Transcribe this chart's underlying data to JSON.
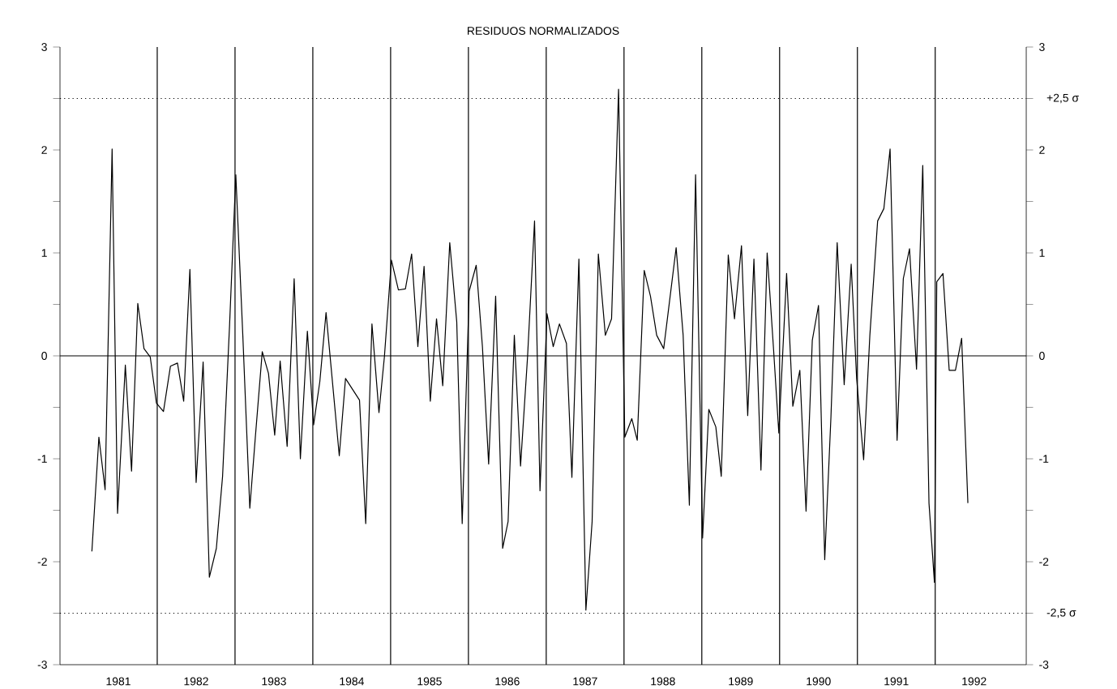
{
  "chart_data": {
    "type": "line",
    "title": "RESIDUOS NORMALIZADOS",
    "xlim": [
      1980.75,
      1993.17
    ],
    "xticks": [
      {
        "value": 1981.5,
        "label": "1981"
      },
      {
        "value": 1982.5,
        "label": "1982"
      },
      {
        "value": 1983.5,
        "label": "1983"
      },
      {
        "value": 1984.5,
        "label": "1984"
      },
      {
        "value": 1985.5,
        "label": "1985"
      },
      {
        "value": 1986.5,
        "label": "1986"
      },
      {
        "value": 1987.5,
        "label": "1987"
      },
      {
        "value": 1988.5,
        "label": "1988"
      },
      {
        "value": 1989.5,
        "label": "1989"
      },
      {
        "value": 1990.5,
        "label": "1990"
      },
      {
        "value": 1991.5,
        "label": "1991"
      },
      {
        "value": 1992.5,
        "label": "1992"
      }
    ],
    "ylim": [
      -3,
      3
    ],
    "yticks": [
      -3,
      {
        "value": -2.5,
        "label": null
      },
      -2,
      {
        "value": -1.5,
        "label": null
      },
      -1,
      {
        "value": -0.5,
        "label": null
      },
      0,
      {
        "value": 0.5,
        "label": null
      },
      1,
      {
        "value": 1.5,
        "label": null
      },
      2,
      {
        "value": 2.5,
        "label": null
      },
      3
    ],
    "y2lim": [
      -3,
      3
    ],
    "y2ticks": [
      -3,
      {
        "value": -2.5,
        "label": null
      },
      -2,
      {
        "value": -1.5,
        "label": null
      },
      -1,
      {
        "value": -0.5,
        "label": null
      },
      0,
      {
        "value": 0.5,
        "label": null
      },
      1,
      {
        "value": 1.5,
        "label": null
      },
      2,
      {
        "value": 2.5,
        "label": null
      },
      3
    ],
    "ref_lines": [
      {
        "axis": "y",
        "value": 0,
        "line_style": "solid"
      },
      {
        "axis": "y",
        "value": 2.5,
        "label": "+2,5 σ",
        "line_style": "dotted"
      },
      {
        "axis": "y",
        "value": -2.5,
        "label": "-2,5 σ",
        "line_style": "dotted"
      },
      {
        "axis": "x",
        "value": 1982,
        "line_style": "solid"
      },
      {
        "axis": "x",
        "value": 1983,
        "line_style": "solid"
      },
      {
        "axis": "x",
        "value": 1984,
        "line_style": "solid"
      },
      {
        "axis": "x",
        "value": 1985,
        "line_style": "solid"
      },
      {
        "axis": "x",
        "value": 1986,
        "line_style": "solid"
      },
      {
        "axis": "x",
        "value": 1987,
        "line_style": "solid"
      },
      {
        "axis": "x",
        "value": 1988,
        "line_style": "solid"
      },
      {
        "axis": "x",
        "value": 1989,
        "line_style": "solid"
      },
      {
        "axis": "x",
        "value": 1990,
        "line_style": "solid"
      },
      {
        "axis": "x",
        "value": 1991,
        "line_style": "solid"
      },
      {
        "axis": "x",
        "value": 1992,
        "line_style": "solid"
      }
    ],
    "series": [
      {
        "color": "#000000",
        "x": [
          1981.16,
          1981.25,
          1981.33,
          1981.42,
          1981.49,
          1981.59,
          1981.67,
          1981.75,
          1981.83,
          1981.91,
          1981.99,
          1982.08,
          1982.17,
          1982.26,
          1982.34,
          1982.42,
          1982.5,
          1982.59,
          1982.67,
          1982.76,
          1982.84,
          1982.93,
          1983.01,
          1983.1,
          1983.19,
          1983.26,
          1983.35,
          1983.43,
          1983.51,
          1983.58,
          1983.67,
          1983.76,
          1983.84,
          1983.93,
          1984.01,
          1984.09,
          1984.17,
          1984.34,
          1984.42,
          1984.6,
          1984.68,
          1984.76,
          1984.85,
          1984.92,
          1985.01,
          1985.1,
          1985.19,
          1985.27,
          1985.35,
          1985.43,
          1985.51,
          1985.59,
          1985.67,
          1985.76,
          1985.85,
          1985.92,
          1986.01,
          1986.1,
          1986.18,
          1986.26,
          1986.35,
          1986.44,
          1986.51,
          1986.59,
          1986.67,
          1986.76,
          1986.85,
          1986.92,
          1987.01,
          1987.09,
          1987.17,
          1987.26,
          1987.33,
          1987.42,
          1987.51,
          1987.59,
          1987.67,
          1987.76,
          1987.84,
          1987.93,
          1988.01,
          1988.1,
          1988.17,
          1988.26,
          1988.34,
          1988.42,
          1988.51,
          1988.67,
          1988.76,
          1988.84,
          1988.92,
          1989.01,
          1989.09,
          1989.18,
          1989.25,
          1989.34,
          1989.42,
          1989.51,
          1989.59,
          1989.67,
          1989.76,
          1989.84,
          1989.92,
          1989.99,
          1990.09,
          1990.17,
          1990.26,
          1990.34,
          1990.42,
          1990.5,
          1990.58,
          1990.66,
          1990.74,
          1990.83,
          1990.92,
          1990.99,
          1991.08,
          1991.16,
          1991.26,
          1991.34,
          1991.42,
          1991.51,
          1991.59,
          1991.67,
          1991.76,
          1991.84,
          1991.92,
          1991.99,
          1992.02,
          1992.1,
          1992.18,
          1992.26,
          1992.34,
          1992.42
        ],
        "values": [
          -1.9,
          -0.79,
          -1.3,
          2.01,
          -1.53,
          -0.09,
          -1.12,
          0.51,
          0.07,
          -0.01,
          -0.46,
          -0.54,
          -0.1,
          -0.07,
          -0.44,
          0.84,
          -1.23,
          -0.06,
          -2.15,
          -1.87,
          -1.17,
          0.3,
          1.76,
          0.2,
          -1.48,
          -0.8,
          0.04,
          -0.17,
          -0.77,
          -0.05,
          -0.88,
          0.75,
          -1.0,
          0.24,
          -0.67,
          -0.25,
          0.42,
          -0.97,
          -0.22,
          -0.43,
          -1.63,
          0.31,
          -0.55,
          -0.01,
          0.93,
          0.64,
          0.65,
          0.99,
          0.09,
          0.87,
          -0.44,
          0.36,
          -0.29,
          1.1,
          0.33,
          -1.63,
          0.63,
          0.88,
          0.09,
          -1.05,
          0.58,
          -1.87,
          -1.61,
          0.2,
          -1.07,
          -0.01,
          1.31,
          -1.31,
          0.41,
          0.09,
          0.31,
          0.12,
          -1.18,
          0.94,
          -2.47,
          -1.61,
          0.99,
          0.2,
          0.36,
          2.59,
          -0.79,
          -0.61,
          -0.82,
          0.83,
          0.58,
          0.2,
          0.07,
          1.05,
          0.2,
          -1.45,
          1.76,
          -1.77,
          -0.52,
          -0.69,
          -1.17,
          0.98,
          0.36,
          1.07,
          -0.58,
          0.94,
          -1.11,
          1.0,
          0.09,
          -0.75,
          0.8,
          -0.49,
          -0.14,
          -1.51,
          0.15,
          0.49,
          -1.98,
          -0.59,
          1.1,
          -0.28,
          0.89,
          -0.22,
          -1.01,
          0.2,
          1.31,
          1.43,
          2.01,
          -0.82,
          0.75,
          1.04,
          -0.13,
          1.85,
          -1.43,
          -2.2,
          0.72,
          0.8,
          -0.14,
          -0.14,
          0.17,
          -1.43
        ]
      }
    ]
  }
}
